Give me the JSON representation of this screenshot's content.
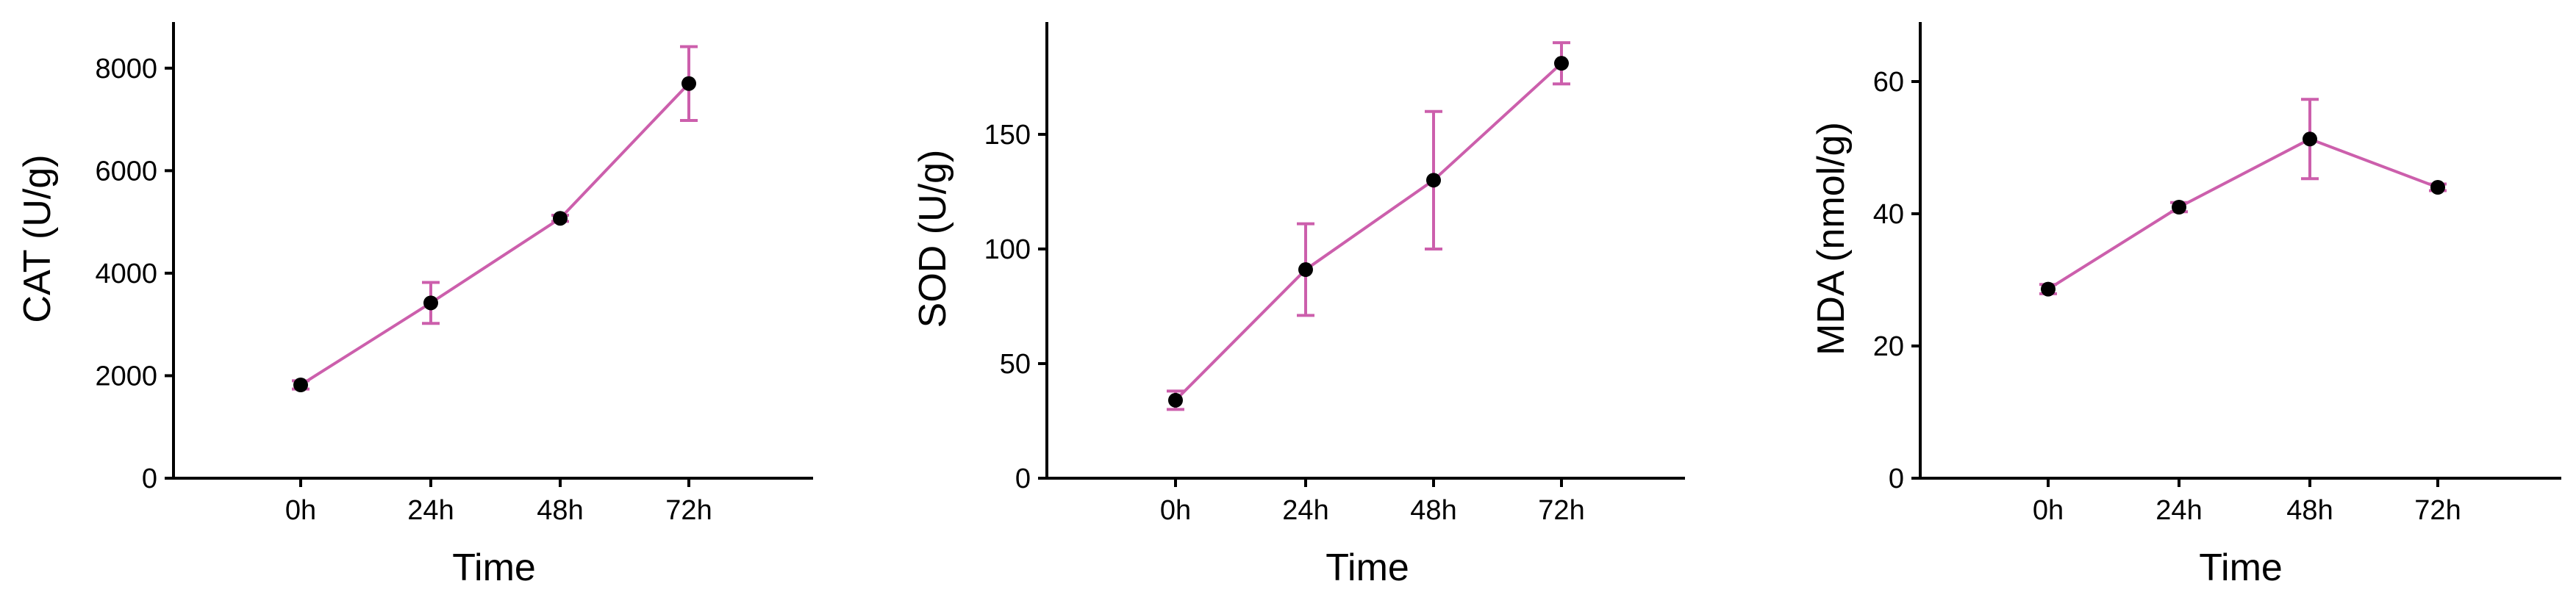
{
  "colors": {
    "line": "#cc5fac",
    "point": "#000000",
    "axis": "#000000",
    "background": "#ffffff"
  },
  "chart_data": [
    {
      "type": "line",
      "xlabel": "Time",
      "ylabel": "CAT (U/g)",
      "categories": [
        "0h",
        "24h",
        "48h",
        "72h"
      ],
      "yticks": [
        0,
        2000,
        4000,
        6000,
        8000
      ],
      "ylim": [
        0,
        8900
      ],
      "series": [
        {
          "values": [
            1820,
            3420,
            5070,
            7700
          ],
          "error": [
            80,
            400,
            60,
            720
          ]
        }
      ],
      "grid": false,
      "error_bars": true
    },
    {
      "type": "line",
      "xlabel": "Time",
      "ylabel": "SOD (U/g)",
      "categories": [
        "0h",
        "24h",
        "48h",
        "72h"
      ],
      "yticks": [
        0,
        50,
        100,
        150
      ],
      "ylim": [
        0,
        199
      ],
      "series": [
        {
          "values": [
            34,
            91,
            130,
            181
          ],
          "error": [
            4,
            20,
            30,
            9
          ]
        }
      ],
      "grid": false,
      "error_bars": true
    },
    {
      "type": "line",
      "xlabel": "Time",
      "ylabel": "MDA (nmol/g)",
      "categories": [
        "0h",
        "24h",
        "48h",
        "72h"
      ],
      "yticks": [
        0,
        20,
        40,
        60
      ],
      "ylim": [
        0,
        69
      ],
      "series": [
        {
          "values": [
            28.6,
            41,
            51.3,
            44
          ],
          "error": [
            0.7,
            0.7,
            6,
            0.5
          ]
        }
      ],
      "grid": false,
      "error_bars": true
    }
  ]
}
